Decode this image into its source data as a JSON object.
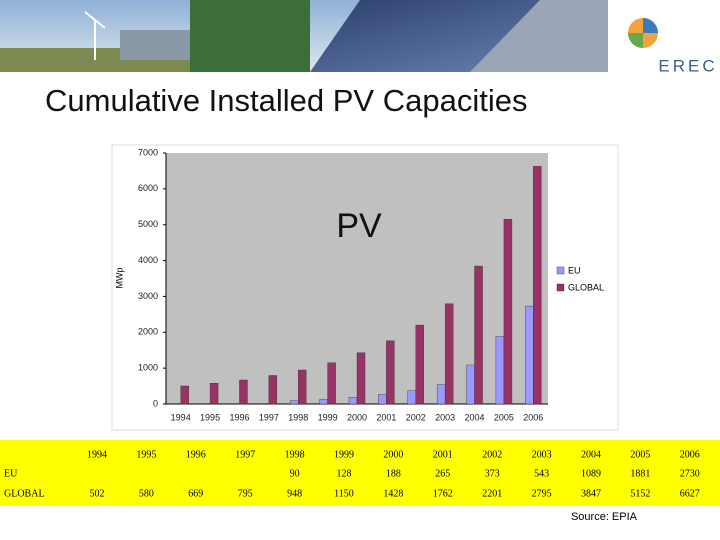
{
  "logo": "EREC",
  "chart_data": {
    "type": "bar",
    "page_title": "Cumulative Installed PV Capacities",
    "title": "PV",
    "y_label": "MWp",
    "source": "Source: EPIA",
    "categories": [
      "1994",
      "1995",
      "1996",
      "1997",
      "1998",
      "1999",
      "2000",
      "2001",
      "2002",
      "2003",
      "2004",
      "2005",
      "2006"
    ],
    "series": [
      {
        "name": "EU",
        "color": "#9999ff",
        "values": [
          null,
          null,
          null,
          null,
          90,
          128,
          188,
          265,
          373,
          543,
          1089,
          1881,
          2730
        ]
      },
      {
        "name": "GLOBAL",
        "color": "#993366",
        "values": [
          502,
          580,
          669,
          795,
          948,
          1150,
          1428,
          1762,
          2201,
          2795,
          3847,
          5152,
          6627
        ]
      }
    ],
    "ylim": [
      0,
      7000
    ],
    "yticks": [
      0,
      1000,
      2000,
      3000,
      4000,
      5000,
      6000,
      7000
    ],
    "legend": "right"
  }
}
